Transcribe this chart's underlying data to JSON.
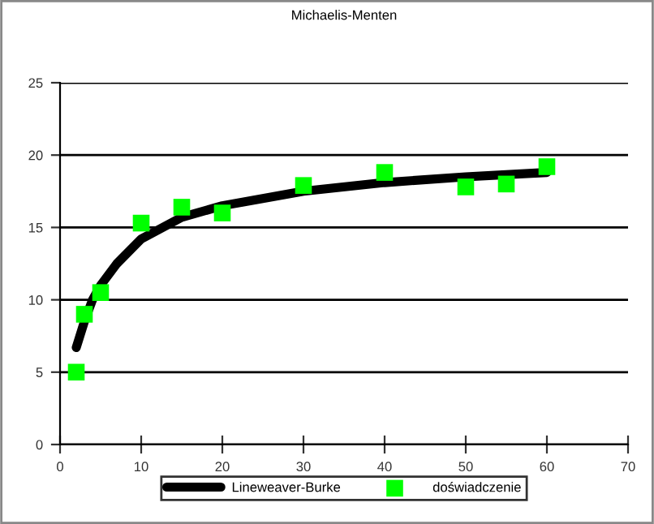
{
  "chart_data": {
    "type": "scatter",
    "title": "Michaelis-Menten",
    "series": [
      {
        "name": "Lineweaver-Burke",
        "type": "line",
        "color": "#000000",
        "marker": "none",
        "line_style": "solid",
        "x": [
          2,
          3,
          4,
          5,
          7,
          10,
          15,
          20,
          30,
          40,
          50,
          60
        ],
        "values": [
          6.7,
          8.5,
          10,
          11,
          12.5,
          14.2,
          15.7,
          16.5,
          17.5,
          18.1,
          18.5,
          18.8
        ]
      },
      {
        "name": "doświadczenie",
        "color": "#00ff00",
        "marker": "square",
        "x": [
          2,
          3,
          5,
          10,
          15,
          20,
          30,
          40,
          50,
          55,
          60
        ],
        "values": [
          5,
          9,
          10.5,
          15.3,
          16.4,
          16,
          17.9,
          18.8,
          17.8,
          18,
          19.2
        ]
      }
    ],
    "xlim": [
      0,
      70
    ],
    "xticks": [
      0,
      10,
      20,
      30,
      40,
      50,
      60,
      70
    ],
    "ylim": [
      0,
      25
    ],
    "yticks": [
      0,
      5,
      10,
      15,
      20,
      25
    ],
    "grid": "y",
    "legend": "bottom"
  }
}
